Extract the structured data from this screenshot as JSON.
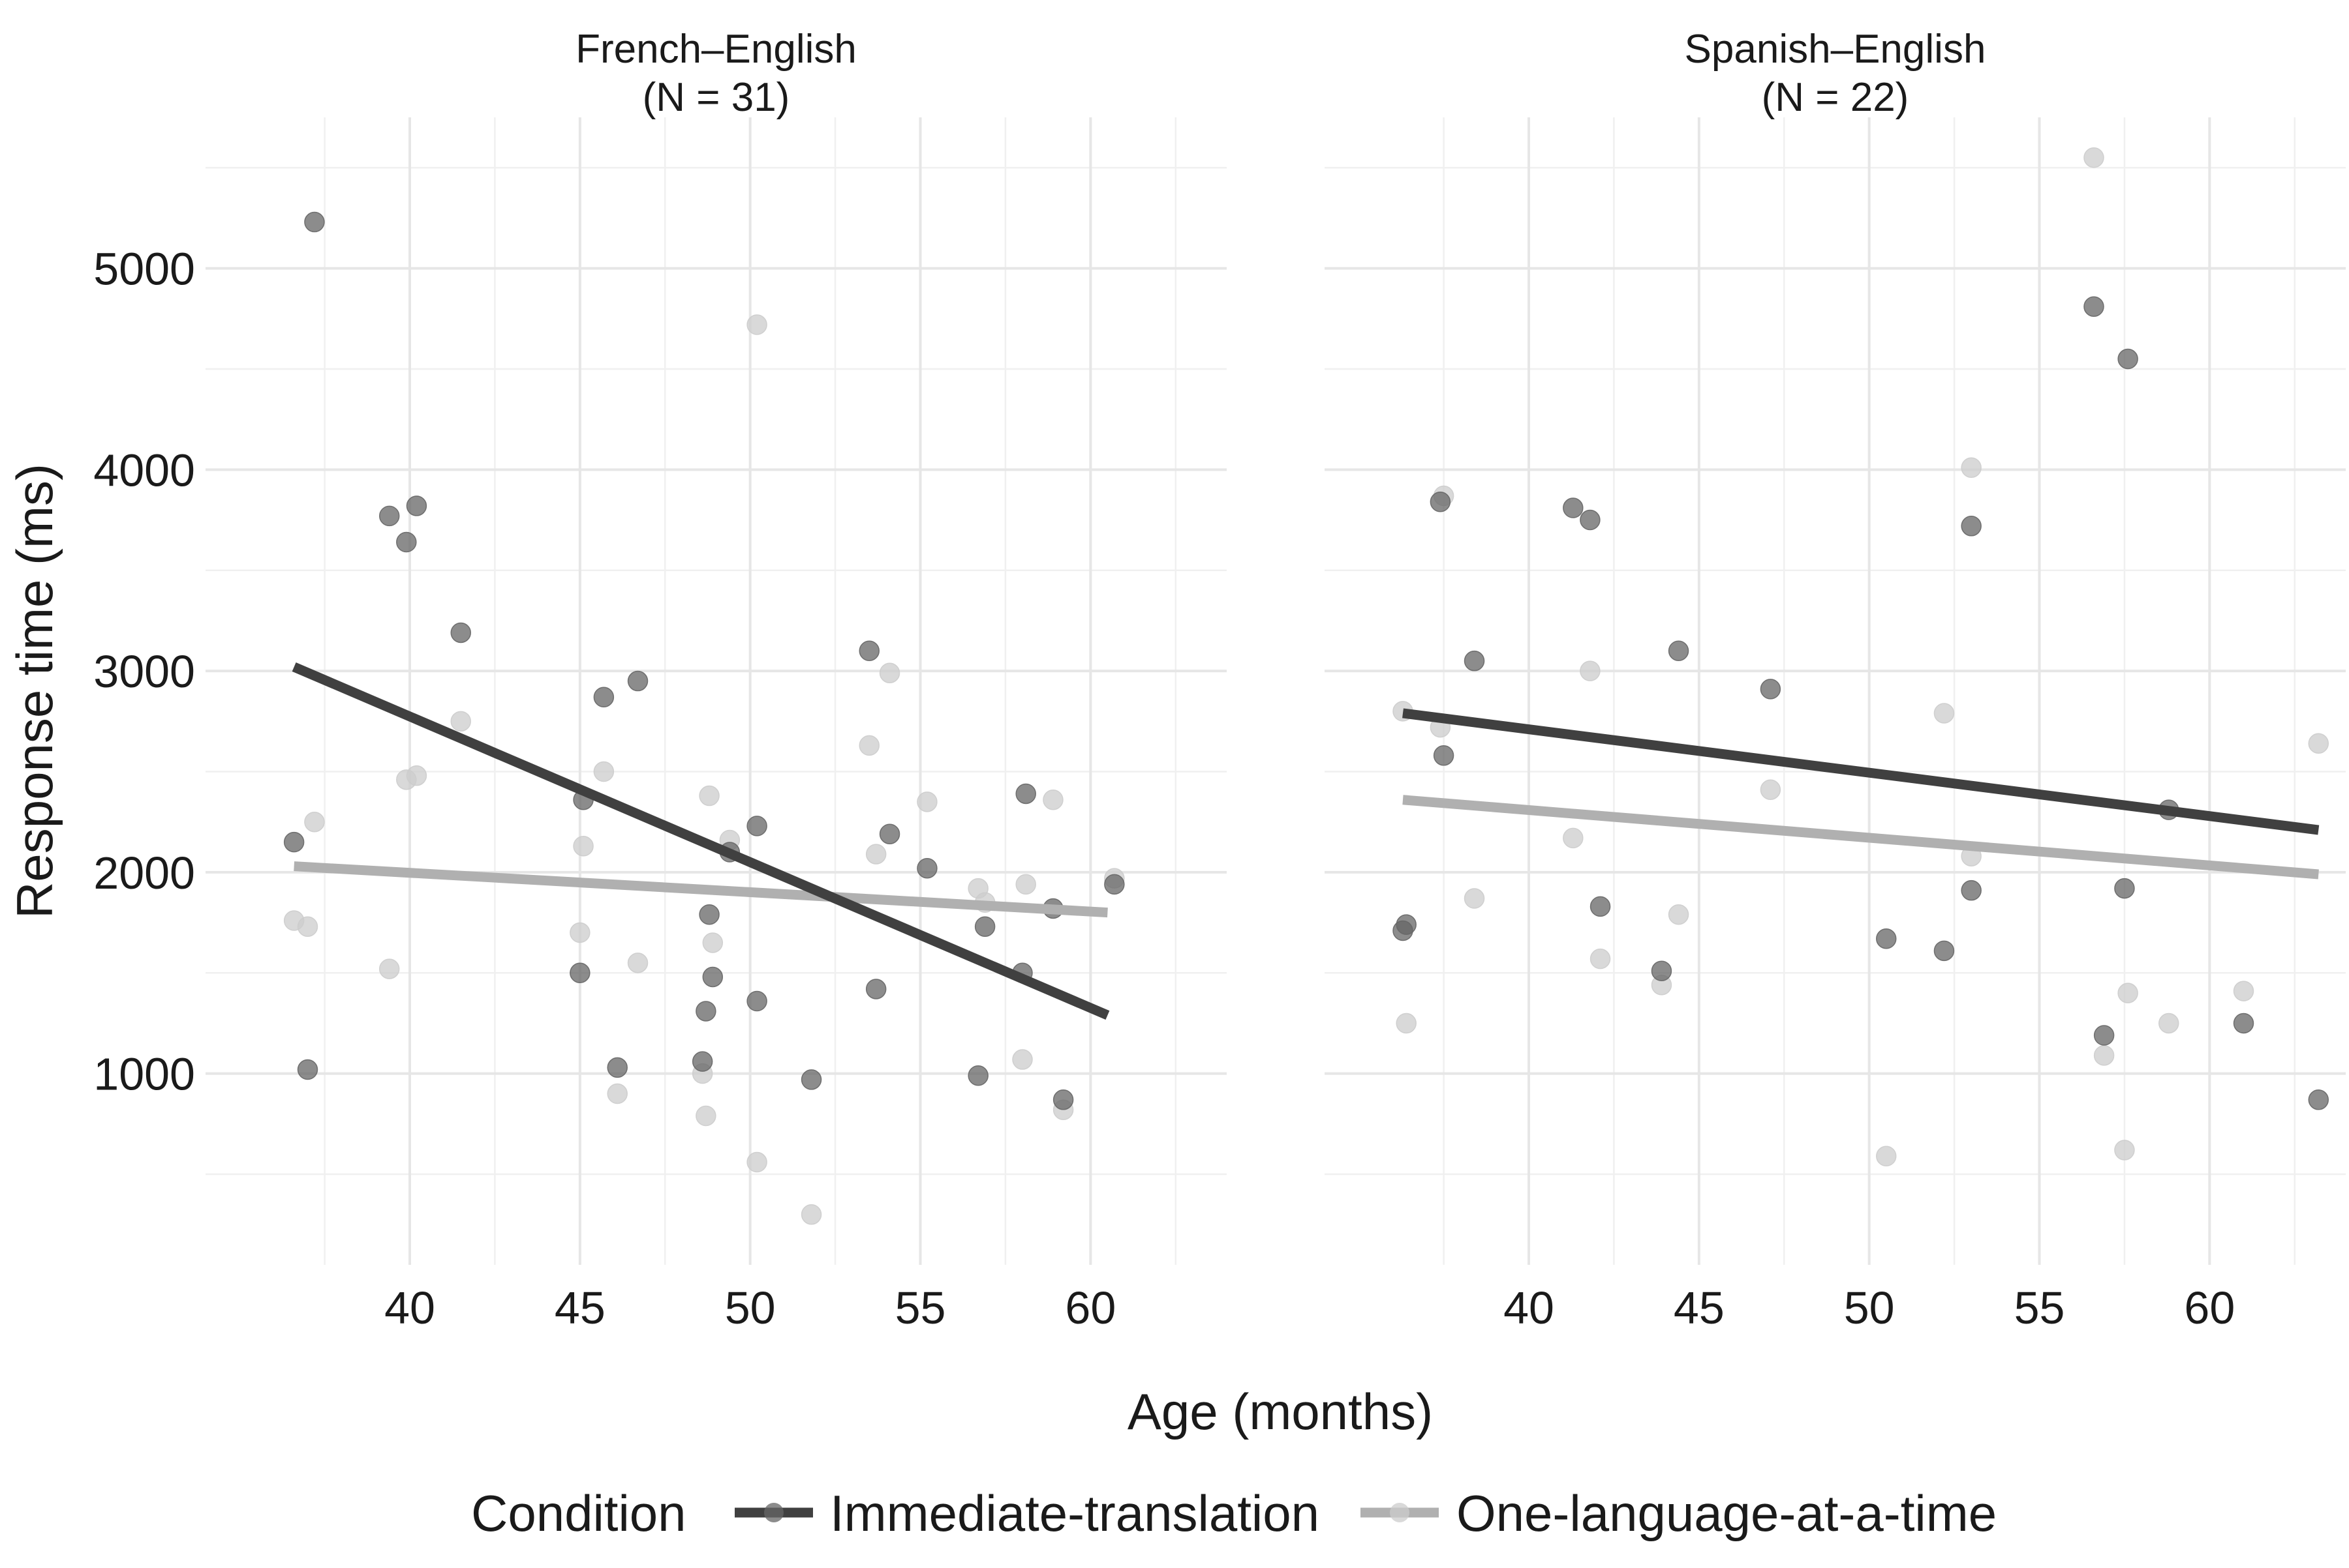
{
  "chart_data": {
    "type": "scatter",
    "xlabel": "Age (months)",
    "ylabel": "Response time (ms)",
    "xlim": [
      34,
      64
    ],
    "ylim": [
      50,
      5750
    ],
    "x_ticks": [
      40,
      45,
      50,
      55,
      60
    ],
    "y_ticks": [
      1000,
      2000,
      3000,
      4000,
      5000
    ],
    "grid": true,
    "colors": {
      "Immediate-translation": {
        "point": "#666666",
        "line": "#404040"
      },
      "One-language-at-a-time": {
        "point": "#cccccc",
        "line": "#b0b0b0"
      }
    },
    "legend": {
      "position": "bottom",
      "title": "Condition",
      "entries": [
        "Immediate-translation",
        "One-language-at-a-time"
      ]
    },
    "panels": [
      {
        "title_line1": "French–English",
        "title_line2": "(N = 31)",
        "series": [
          {
            "name": "Immediate-translation",
            "points": [
              [
                36.6,
                2150
              ],
              [
                37.2,
                5230
              ],
              [
                37.0,
                1020
              ],
              [
                39.4,
                3770
              ],
              [
                39.9,
                3640
              ],
              [
                40.2,
                3820
              ],
              [
                41.5,
                3190
              ],
              [
                45.0,
                1500
              ],
              [
                45.1,
                2360
              ],
              [
                45.7,
                2870
              ],
              [
                46.1,
                1030
              ],
              [
                46.7,
                2950
              ],
              [
                48.6,
                1060
              ],
              [
                48.7,
                1310
              ],
              [
                48.8,
                1790
              ],
              [
                48.9,
                1480
              ],
              [
                49.4,
                2100
              ],
              [
                50.2,
                2230
              ],
              [
                50.2,
                1360
              ],
              [
                51.8,
                970
              ],
              [
                53.5,
                3100
              ],
              [
                53.7,
                1420
              ],
              [
                54.1,
                2190
              ],
              [
                55.2,
                2020
              ],
              [
                56.7,
                990
              ],
              [
                56.9,
                1730
              ],
              [
                58.0,
                1500
              ],
              [
                58.1,
                2390
              ],
              [
                58.9,
                1820
              ],
              [
                59.2,
                870
              ],
              [
                60.7,
                1940
              ]
            ],
            "trend": [
              [
                36.6,
                3020
              ],
              [
                60.5,
                1290
              ]
            ]
          },
          {
            "name": "One-language-at-a-time",
            "points": [
              [
                36.6,
                1760
              ],
              [
                37.0,
                1730
              ],
              [
                37.2,
                2250
              ],
              [
                39.4,
                1520
              ],
              [
                39.9,
                2460
              ],
              [
                40.2,
                2480
              ],
              [
                41.5,
                2750
              ],
              [
                45.0,
                1700
              ],
              [
                45.1,
                2130
              ],
              [
                45.7,
                2500
              ],
              [
                46.1,
                900
              ],
              [
                46.7,
                1550
              ],
              [
                48.6,
                1000
              ],
              [
                48.7,
                790
              ],
              [
                48.8,
                2380
              ],
              [
                48.9,
                1650
              ],
              [
                49.4,
                2160
              ],
              [
                50.2,
                4720
              ],
              [
                50.2,
                560
              ],
              [
                51.8,
                300
              ],
              [
                53.5,
                2630
              ],
              [
                53.7,
                2090
              ],
              [
                54.1,
                2990
              ],
              [
                55.2,
                2350
              ],
              [
                56.7,
                1920
              ],
              [
                56.9,
                1850
              ],
              [
                58.0,
                1070
              ],
              [
                58.1,
                1940
              ],
              [
                58.9,
                2360
              ],
              [
                59.2,
                820
              ],
              [
                60.7,
                1970
              ]
            ],
            "trend": [
              [
                36.6,
                2030
              ],
              [
                60.5,
                1800
              ]
            ]
          }
        ]
      },
      {
        "title_line1": "Spanish–English",
        "title_line2": "(N = 22)",
        "series": [
          {
            "name": "Immediate-translation",
            "points": [
              [
                36.3,
                1710
              ],
              [
                36.4,
                1740
              ],
              [
                37.4,
                3840
              ],
              [
                37.5,
                2580
              ],
              [
                38.4,
                3050
              ],
              [
                41.3,
                3810
              ],
              [
                41.8,
                3750
              ],
              [
                42.1,
                1830
              ],
              [
                43.9,
                1510
              ],
              [
                44.4,
                3100
              ],
              [
                47.1,
                2910
              ],
              [
                50.5,
                1670
              ],
              [
                52.2,
                1610
              ],
              [
                53.0,
                3720
              ],
              [
                53.0,
                1910
              ],
              [
                56.6,
                4810
              ],
              [
                56.9,
                1190
              ],
              [
                57.5,
                1920
              ],
              [
                57.6,
                4550
              ],
              [
                58.8,
                2310
              ],
              [
                61.0,
                1250
              ],
              [
                63.2,
                870
              ]
            ],
            "trend": [
              [
                36.3,
                2790
              ],
              [
                63.2,
                2210
              ]
            ]
          },
          {
            "name": "One-language-at-a-time",
            "points": [
              [
                36.3,
                2800
              ],
              [
                36.4,
                1250
              ],
              [
                37.4,
                2720
              ],
              [
                37.5,
                3870
              ],
              [
                38.4,
                1870
              ],
              [
                41.3,
                2170
              ],
              [
                41.8,
                3000
              ],
              [
                42.1,
                1570
              ],
              [
                43.9,
                1440
              ],
              [
                44.4,
                1790
              ],
              [
                47.1,
                2410
              ],
              [
                50.5,
                590
              ],
              [
                52.2,
                2790
              ],
              [
                53.0,
                4010
              ],
              [
                53.0,
                2080
              ],
              [
                56.6,
                5550
              ],
              [
                56.9,
                1090
              ],
              [
                57.5,
                620
              ],
              [
                57.6,
                1400
              ],
              [
                58.8,
                1250
              ],
              [
                61.0,
                1410
              ],
              [
                63.2,
                2640
              ]
            ],
            "trend": [
              [
                36.3,
                2360
              ],
              [
                63.2,
                1990
              ]
            ]
          }
        ]
      }
    ]
  }
}
